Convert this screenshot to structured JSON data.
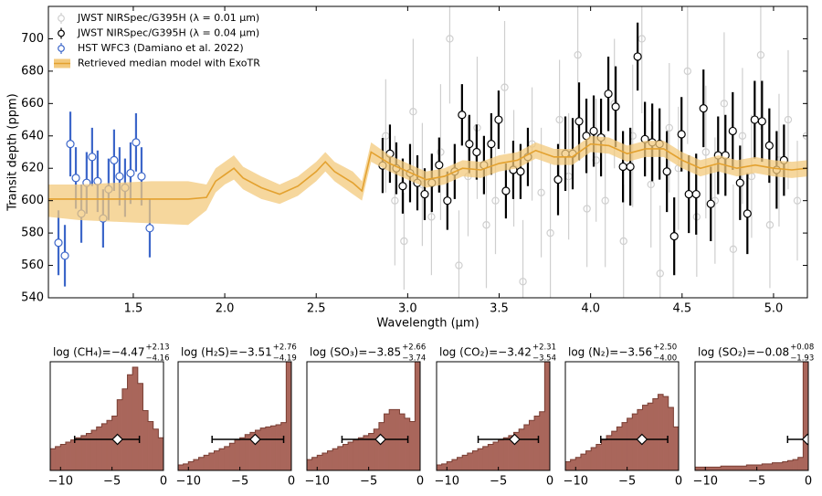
{
  "chart_data": [
    {
      "type": "errorbar",
      "xlabel": "Wavelength (μm)",
      "ylabel": "Transit depth (ppm)",
      "xlim": [
        1.036,
        5.185
      ],
      "ylim": [
        540,
        720
      ],
      "xticks": [
        1.5,
        {
          "value": 2,
          "label": "2.0"
        },
        2.5,
        {
          "value": 3,
          "label": "3.0"
        },
        3.5,
        {
          "value": 4,
          "label": "4.0"
        },
        4.5,
        {
          "value": 5,
          "label": "5.0"
        }
      ],
      "yticks": [
        540,
        560,
        580,
        600,
        620,
        640,
        660,
        680,
        700
      ],
      "legend": "upper left",
      "series": [
        {
          "name": "JWST NIRSpec/G395H (λ = 0.01 μm)",
          "color": "#cfcfcf",
          "x": [
            2.88,
            2.93,
            2.98,
            3.03,
            3.08,
            3.13,
            3.18,
            3.23,
            3.28,
            3.33,
            3.38,
            3.43,
            3.48,
            3.53,
            3.58,
            3.63,
            3.68,
            3.73,
            3.78,
            3.83,
            3.88,
            3.93,
            3.98,
            4.03,
            4.08,
            4.13,
            4.18,
            4.23,
            4.28,
            4.33,
            4.38,
            4.43,
            4.48,
            4.53,
            4.58,
            4.63,
            4.68,
            4.73,
            4.78,
            4.83,
            4.88,
            4.93,
            4.98,
            5.03,
            5.08,
            5.13,
            5.18
          ],
          "values": [
            640,
            600,
            575,
            655,
            610,
            590,
            630,
            700,
            560,
            615,
            645,
            585,
            600,
            670,
            620,
            550,
            635,
            605,
            580,
            650,
            615,
            690,
            595,
            625,
            600,
            660,
            575,
            640,
            700,
            610,
            555,
            645,
            620,
            680,
            590,
            630,
            600,
            660,
            570,
            640,
            615,
            690,
            585,
            625,
            650,
            600,
            640
          ],
          "errors": [
            35,
            40,
            30,
            45,
            38,
            36,
            42,
            40,
            34,
            37,
            44,
            39,
            33,
            41,
            36,
            38,
            35,
            40,
            43,
            37,
            39,
            45,
            36,
            38,
            41,
            40,
            35,
            44,
            46,
            39,
            42,
            40,
            38,
            45,
            37,
            41,
            39,
            44,
            40,
            42,
            38,
            46,
            39,
            41,
            43,
            37,
            40
          ]
        },
        {
          "name": "JWST NIRSpec/G395H (λ = 0.04 μm)",
          "color": "#000000",
          "x": [
            2.863,
            2.903,
            2.938,
            2.973,
            3.013,
            3.053,
            3.093,
            3.132,
            3.172,
            3.217,
            3.257,
            3.297,
            3.337,
            3.377,
            3.417,
            3.457,
            3.497,
            3.537,
            3.577,
            3.617,
            3.657,
            3.822,
            3.862,
            3.902,
            3.937,
            3.977,
            4.017,
            4.057,
            4.097,
            4.137,
            4.177,
            4.217,
            4.257,
            4.297,
            4.337,
            4.377,
            4.417,
            4.457,
            4.497,
            4.537,
            4.577,
            4.617,
            4.657,
            4.697,
            4.737,
            4.777,
            4.817,
            4.857,
            4.897,
            4.937,
            4.977,
            5.017,
            5.057
          ],
          "values": [
            621.7,
            629,
            620,
            609,
            617,
            611,
            604,
            611,
            622,
            600,
            618,
            653,
            635,
            630,
            622,
            635,
            650,
            606,
            619,
            618,
            627,
            613,
            629,
            629,
            649,
            640,
            643,
            639,
            666,
            658,
            621,
            621,
            689,
            638,
            636,
            635,
            618,
            578,
            641,
            604,
            604,
            657,
            598,
            628,
            628,
            643,
            611,
            592,
            650,
            649,
            634,
            619,
            625
          ],
          "errors": [
            17,
            18,
            16,
            17,
            18,
            17,
            16,
            18,
            17,
            18,
            17,
            19,
            18,
            17,
            18,
            19,
            18,
            17,
            18,
            17,
            18,
            22,
            23,
            22,
            24,
            23,
            22,
            24,
            23,
            25,
            22,
            24,
            21,
            23,
            24,
            22,
            25,
            24,
            23,
            24,
            25,
            24,
            23,
            24,
            25,
            24,
            23,
            25,
            24,
            25,
            23,
            24,
            22
          ]
        },
        {
          "name": "HST WFC3 (Damiano et al. 2022)",
          "color": "#3c66c9",
          "x": [
            1.091,
            1.126,
            1.156,
            1.186,
            1.216,
            1.245,
            1.275,
            1.305,
            1.335,
            1.365,
            1.395,
            1.425,
            1.455,
            1.485,
            1.515,
            1.545,
            1.59
          ],
          "values": [
            574,
            566,
            635,
            614,
            592,
            611,
            627,
            612,
            589,
            607,
            625,
            615,
            608,
            617,
            636,
            615,
            583
          ],
          "errors": [
            20,
            19,
            20,
            19,
            18,
            19,
            18,
            19,
            18,
            19,
            19,
            18,
            18,
            19,
            18,
            18,
            18
          ]
        },
        {
          "name": "Retrieved median model with ExoTR",
          "color": "#e3a12f",
          "band_color": "#f3c97c",
          "x": [
            1.036,
            1.2,
            1.4,
            1.6,
            1.8,
            1.9,
            1.95,
            2.0,
            2.05,
            2.1,
            2.2,
            2.3,
            2.4,
            2.5,
            2.55,
            2.6,
            2.7,
            2.75,
            2.8,
            2.9,
            3.0,
            3.1,
            3.2,
            3.3,
            3.4,
            3.5,
            3.6,
            3.7,
            3.8,
            3.9,
            4.0,
            4.1,
            4.2,
            4.3,
            4.4,
            4.5,
            4.6,
            4.7,
            4.8,
            4.9,
            5.0,
            5.1,
            5.185
          ],
          "values": [
            601,
            601,
            601,
            601,
            601,
            602,
            612,
            616,
            620,
            614,
            608,
            604,
            609,
            618,
            624,
            618,
            611,
            606,
            630,
            623,
            618,
            613,
            615,
            620,
            619,
            623,
            625,
            631,
            627,
            627,
            635,
            634,
            629,
            632,
            632,
            625,
            620,
            623,
            620,
            622,
            620,
            619,
            620
          ],
          "upper": [
            610,
            610,
            611,
            612,
            612,
            610,
            620,
            624,
            628,
            621,
            615,
            610,
            615,
            624,
            630,
            624,
            618,
            612,
            636,
            628,
            623,
            618,
            620,
            625,
            624,
            628,
            630,
            636,
            632,
            632,
            640,
            639,
            634,
            637,
            637,
            630,
            625,
            628,
            625,
            627,
            625,
            624,
            625
          ],
          "lower": [
            590,
            588,
            587,
            586,
            585,
            594,
            605,
            610,
            613,
            607,
            601,
            598,
            603,
            612,
            618,
            612,
            604,
            600,
            624,
            618,
            613,
            608,
            610,
            615,
            614,
            618,
            620,
            626,
            622,
            622,
            630,
            629,
            624,
            627,
            627,
            620,
            615,
            618,
            615,
            617,
            615,
            614,
            615
          ]
        }
      ]
    },
    {
      "type": "histogram",
      "title_prefix": "log (CH₄)=",
      "stats": {
        "median": -4.47,
        "plus": 2.13,
        "minus": 4.16
      },
      "stats_labels": {
        "median": "−4.47",
        "plus": "+2.13",
        "minus": "−4.16"
      },
      "bins": [
        -11,
        -10.5,
        -10,
        -9.5,
        -9,
        -8.5,
        -8,
        -7.5,
        -7,
        -6.5,
        -6,
        -5.5,
        -5,
        -4.5,
        -4,
        -3.5,
        -3,
        -2.5,
        -2,
        -1.5,
        -1,
        -0.5,
        0
      ],
      "counts": [
        20,
        22,
        24,
        26,
        28,
        30,
        32,
        34,
        37,
        40,
        43,
        46,
        50,
        65,
        75,
        88,
        95,
        80,
        55,
        45,
        38,
        30
      ],
      "xlim": [
        -11,
        0
      ],
      "ylim": [
        0,
        100
      ],
      "xticks": [
        {
          "value": -10,
          "label": "−10"
        },
        {
          "value": -5,
          "label": "−5"
        },
        0
      ],
      "color": "#a9665b"
    },
    {
      "type": "histogram",
      "title_prefix": "log (H₂S)=",
      "stats": {
        "median": -3.51,
        "plus": 2.76,
        "minus": 4.19
      },
      "stats_labels": {
        "median": "−3.51",
        "plus": "+2.76",
        "minus": "−4.19"
      },
      "bins": [
        -11,
        -10.5,
        -10,
        -9.5,
        -9,
        -8.5,
        -8,
        -7.5,
        -7,
        -6.5,
        -6,
        -5.5,
        -5,
        -4.5,
        -4,
        -3.5,
        -3,
        -2.5,
        -2,
        -1.5,
        -1,
        -0.5,
        0
      ],
      "counts": [
        5,
        6,
        8,
        10,
        12,
        14,
        16,
        18,
        20,
        22,
        25,
        28,
        30,
        33,
        35,
        37,
        39,
        40,
        41,
        42,
        44,
        100
      ],
      "xlim": [
        -11,
        0
      ],
      "ylim": [
        0,
        100
      ],
      "xticks": [
        {
          "value": -10,
          "label": "−10"
        },
        {
          "value": -5,
          "label": "−5"
        },
        0
      ],
      "color": "#a9665b"
    },
    {
      "type": "histogram",
      "title_prefix": "log (SO₃)=",
      "stats": {
        "median": -3.85,
        "plus": 2.66,
        "minus": 3.74
      },
      "stats_labels": {
        "median": "−3.85",
        "plus": "+2.66",
        "minus": "−3.74"
      },
      "bins": [
        -11,
        -10.5,
        -10,
        -9.5,
        -9,
        -8.5,
        -8,
        -7.5,
        -7,
        -6.5,
        -6,
        -5.5,
        -5,
        -4.5,
        -4,
        -3.5,
        -3,
        -2.5,
        -2,
        -1.5,
        -1,
        -0.5,
        0
      ],
      "counts": [
        10,
        12,
        14,
        16,
        18,
        20,
        22,
        24,
        26,
        28,
        30,
        32,
        34,
        38,
        44,
        52,
        56,
        56,
        52,
        48,
        45,
        100
      ],
      "xlim": [
        -11,
        0
      ],
      "ylim": [
        0,
        100
      ],
      "xticks": [
        {
          "value": -10,
          "label": "−10"
        },
        {
          "value": -5,
          "label": "−5"
        },
        0
      ],
      "color": "#a9665b"
    },
    {
      "type": "histogram",
      "title_prefix": "log (CO₂)=",
      "stats": {
        "median": -3.42,
        "plus": 2.31,
        "minus": 3.54
      },
      "stats_labels": {
        "median": "−3.42",
        "plus": "+2.31",
        "minus": "−3.54"
      },
      "bins": [
        -11,
        -10.5,
        -10,
        -9.5,
        -9,
        -8.5,
        -8,
        -7.5,
        -7,
        -6.5,
        -6,
        -5.5,
        -5,
        -4.5,
        -4,
        -3.5,
        -3,
        -2.5,
        -2,
        -1.5,
        -1,
        -0.5,
        0
      ],
      "counts": [
        5,
        6,
        8,
        10,
        12,
        14,
        16,
        18,
        20,
        22,
        24,
        26,
        28,
        30,
        32,
        35,
        38,
        42,
        46,
        50,
        54,
        100
      ],
      "xlim": [
        -11,
        0
      ],
      "ylim": [
        0,
        100
      ],
      "xticks": [
        {
          "value": -10,
          "label": "−10"
        },
        {
          "value": -5,
          "label": "−5"
        },
        0
      ],
      "color": "#a9665b"
    },
    {
      "type": "histogram",
      "title_prefix": "log (N₂)=",
      "stats": {
        "median": -3.56,
        "plus": 2.5,
        "minus": 4.0
      },
      "stats_labels": {
        "median": "−3.56",
        "plus": "+2.50",
        "minus": "−4.00"
      },
      "bins": [
        -11,
        -10.5,
        -10,
        -9.5,
        -9,
        -8.5,
        -8,
        -7.5,
        -7,
        -6.5,
        -6,
        -5.5,
        -5,
        -4.5,
        -4,
        -3.5,
        -3,
        -2.5,
        -2,
        -1.5,
        -1,
        -0.5,
        0
      ],
      "counts": [
        8,
        10,
        12,
        15,
        18,
        21,
        24,
        28,
        32,
        36,
        40,
        44,
        48,
        52,
        56,
        60,
        62,
        66,
        70,
        68,
        58,
        40
      ],
      "xlim": [
        -11,
        0
      ],
      "ylim": [
        0,
        100
      ],
      "xticks": [
        {
          "value": -10,
          "label": "−10"
        },
        {
          "value": -5,
          "label": "−5"
        },
        0
      ],
      "color": "#a9665b"
    },
    {
      "type": "histogram",
      "title_prefix": "log (SO₂)=",
      "stats": {
        "median": -0.08,
        "plus": 0.08,
        "minus": 1.93
      },
      "stats_labels": {
        "median": "−0.08",
        "plus": "+0.08",
        "minus": "−1.93"
      },
      "bins": [
        -11,
        -10.5,
        -10,
        -9.5,
        -9,
        -8.5,
        -8,
        -7.5,
        -7,
        -6.5,
        -6,
        -5.5,
        -5,
        -4.5,
        -4,
        -3.5,
        -3,
        -2.5,
        -2,
        -1.5,
        -1,
        -0.5,
        0
      ],
      "counts": [
        3,
        3,
        3,
        3,
        3,
        4,
        4,
        4,
        4,
        4,
        5,
        5,
        5,
        6,
        6,
        7,
        7,
        8,
        9,
        10,
        12,
        100
      ],
      "xlim": [
        -11,
        0
      ],
      "ylim": [
        0,
        100
      ],
      "xticks": [
        {
          "value": -10,
          "label": "−10"
        },
        {
          "value": -5,
          "label": "−5"
        },
        0
      ],
      "color": "#a9665b"
    }
  ]
}
